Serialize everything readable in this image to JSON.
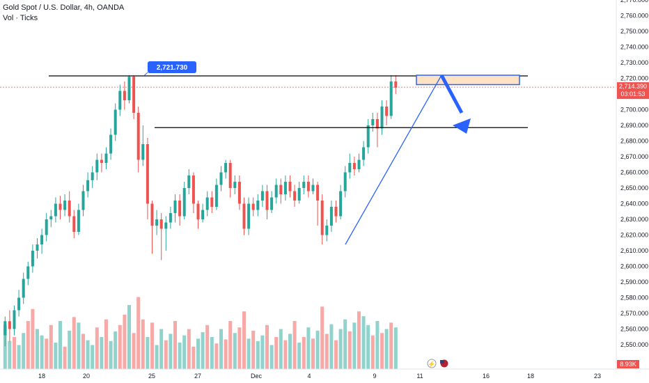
{
  "header": {
    "symbol_line": "Gold Spot / U.S. Dollar, 4h, OANDA",
    "volume_line": "Vol · Ticks"
  },
  "price_axis": {
    "ticks": [
      "2,770.000",
      "2,760.000",
      "2,750.000",
      "2,740.000",
      "2,730.000",
      "2,720.000",
      "2,700.000",
      "2,690.000",
      "2,680.000",
      "2,670.000",
      "2,660.000",
      "2,650.000",
      "2,640.000",
      "2,630.000",
      "2,620.000",
      "2,610.000",
      "2,600.000",
      "2,590.000",
      "2,580.000",
      "2,570.000",
      "2,560.000",
      "2,550.000"
    ],
    "last_price_label": "2,714.390",
    "countdown_label": "03:01:53",
    "volume_label": "8.93K"
  },
  "time_axis": {
    "ticks": [
      "18",
      "20",
      "25",
      "27",
      "Dec",
      "4",
      "9",
      "11",
      "16",
      "18",
      "23"
    ]
  },
  "annotations": {
    "high_label": "2,721.730"
  },
  "colors": {
    "up": "#26a69a",
    "down": "#ef5350",
    "vol_up": "#8fd3cc",
    "vol_down": "#f7a9a7",
    "arrow": "#2962ff",
    "box_fill": "#fde3c4",
    "price_tag": "#ef5350"
  },
  "chart_data": {
    "type": "candlestick",
    "y_axis_range": [
      2545,
      2775
    ],
    "resistance_levels": [
      2722,
      2689
    ],
    "zone": [
      2716,
      2722
    ],
    "trendline_start_price": 2614,
    "projected_target": 2690,
    "candles": [
      [
        2556,
        2565,
        2549,
        2568
      ],
      [
        2565,
        2560,
        2552,
        2572
      ],
      [
        2560,
        2572,
        2556,
        2575
      ],
      [
        2572,
        2580,
        2568,
        2585
      ],
      [
        2580,
        2592,
        2576,
        2596
      ],
      [
        2592,
        2600,
        2588,
        2603
      ],
      [
        2600,
        2610,
        2596,
        2614
      ],
      [
        2610,
        2614,
        2605,
        2618
      ],
      [
        2614,
        2620,
        2608,
        2624
      ],
      [
        2620,
        2630,
        2616,
        2634
      ],
      [
        2630,
        2632,
        2625,
        2636
      ],
      [
        2632,
        2640,
        2628,
        2644
      ],
      [
        2640,
        2636,
        2630,
        2645
      ],
      [
        2636,
        2642,
        2632,
        2646
      ],
      [
        2642,
        2632,
        2628,
        2648
      ],
      [
        2632,
        2622,
        2618,
        2636
      ],
      [
        2622,
        2636,
        2620,
        2640
      ],
      [
        2636,
        2648,
        2632,
        2652
      ],
      [
        2648,
        2655,
        2644,
        2660
      ],
      [
        2655,
        2660,
        2650,
        2664
      ],
      [
        2660,
        2668,
        2655,
        2672
      ],
      [
        2668,
        2666,
        2660,
        2672
      ],
      [
        2666,
        2672,
        2662,
        2676
      ],
      [
        2672,
        2684,
        2668,
        2688
      ],
      [
        2684,
        2700,
        2680,
        2704
      ],
      [
        2700,
        2712,
        2696,
        2716
      ],
      [
        2712,
        2706,
        2700,
        2718
      ],
      [
        2706,
        2721,
        2704,
        2722
      ],
      [
        2721,
        2698,
        2694,
        2722
      ],
      [
        2698,
        2668,
        2660,
        2702
      ],
      [
        2668,
        2678,
        2664,
        2690
      ],
      [
        2678,
        2640,
        2630,
        2682
      ],
      [
        2640,
        2626,
        2608,
        2642
      ],
      [
        2626,
        2630,
        2620,
        2636
      ],
      [
        2630,
        2624,
        2604,
        2634
      ],
      [
        2624,
        2628,
        2610,
        2632
      ],
      [
        2628,
        2634,
        2624,
        2638
      ],
      [
        2634,
        2642,
        2628,
        2646
      ],
      [
        2642,
        2632,
        2626,
        2646
      ],
      [
        2632,
        2650,
        2630,
        2654
      ],
      [
        2650,
        2658,
        2646,
        2662
      ],
      [
        2658,
        2640,
        2634,
        2660
      ],
      [
        2640,
        2630,
        2624,
        2642
      ],
      [
        2630,
        2636,
        2628,
        2640
      ],
      [
        2636,
        2644,
        2632,
        2648
      ],
      [
        2644,
        2638,
        2634,
        2648
      ],
      [
        2638,
        2652,
        2636,
        2656
      ],
      [
        2652,
        2660,
        2648,
        2664
      ],
      [
        2660,
        2666,
        2656,
        2668
      ],
      [
        2666,
        2650,
        2644,
        2668
      ],
      [
        2650,
        2654,
        2646,
        2658
      ],
      [
        2654,
        2640,
        2636,
        2658
      ],
      [
        2640,
        2624,
        2620,
        2644
      ],
      [
        2624,
        2640,
        2620,
        2644
      ],
      [
        2640,
        2636,
        2632,
        2644
      ],
      [
        2636,
        2642,
        2632,
        2646
      ],
      [
        2642,
        2648,
        2638,
        2652
      ],
      [
        2648,
        2636,
        2630,
        2652
      ],
      [
        2636,
        2644,
        2634,
        2648
      ],
      [
        2644,
        2652,
        2640,
        2656
      ],
      [
        2652,
        2646,
        2640,
        2656
      ],
      [
        2646,
        2654,
        2642,
        2658
      ],
      [
        2654,
        2648,
        2644,
        2658
      ],
      [
        2648,
        2642,
        2638,
        2652
      ],
      [
        2642,
        2650,
        2640,
        2654
      ],
      [
        2650,
        2654,
        2646,
        2658
      ],
      [
        2654,
        2648,
        2644,
        2658
      ],
      [
        2648,
        2652,
        2646,
        2656
      ],
      [
        2652,
        2642,
        2626,
        2654
      ],
      [
        2642,
        2620,
        2614,
        2646
      ],
      [
        2620,
        2626,
        2616,
        2630
      ],
      [
        2626,
        2638,
        2622,
        2642
      ],
      [
        2638,
        2632,
        2628,
        2642
      ],
      [
        2632,
        2648,
        2630,
        2652
      ],
      [
        2648,
        2660,
        2644,
        2664
      ],
      [
        2660,
        2666,
        2656,
        2672
      ],
      [
        2666,
        2662,
        2658,
        2670
      ],
      [
        2662,
        2668,
        2660,
        2672
      ],
      [
        2668,
        2676,
        2664,
        2680
      ],
      [
        2676,
        2690,
        2672,
        2694
      ],
      [
        2690,
        2694,
        2686,
        2698
      ],
      [
        2694,
        2688,
        2676,
        2698
      ],
      [
        2688,
        2702,
        2684,
        2706
      ],
      [
        2702,
        2696,
        2690,
        2706
      ],
      [
        2696,
        2718,
        2694,
        2722
      ],
      [
        2718,
        2714,
        2710,
        2722
      ]
    ],
    "volumes": [
      [
        0.55,
        1
      ],
      [
        0.35,
        1
      ],
      [
        0.4,
        0
      ],
      [
        0.3,
        1
      ],
      [
        0.45,
        1
      ],
      [
        0.6,
        0
      ],
      [
        0.75,
        0
      ],
      [
        0.5,
        1
      ],
      [
        0.42,
        1
      ],
      [
        0.38,
        0
      ],
      [
        0.55,
        0
      ],
      [
        0.33,
        1
      ],
      [
        0.6,
        1
      ],
      [
        0.28,
        0
      ],
      [
        0.48,
        1
      ],
      [
        0.65,
        0
      ],
      [
        0.58,
        1
      ],
      [
        0.44,
        0
      ],
      [
        0.36,
        1
      ],
      [
        0.3,
        1
      ],
      [
        0.52,
        0
      ],
      [
        0.4,
        1
      ],
      [
        0.62,
        0
      ],
      [
        0.35,
        1
      ],
      [
        0.47,
        1
      ],
      [
        0.55,
        0
      ],
      [
        0.68,
        0
      ],
      [
        0.8,
        1
      ],
      [
        0.45,
        0
      ],
      [
        0.9,
        0
      ],
      [
        0.62,
        0
      ],
      [
        0.4,
        1
      ],
      [
        0.58,
        0
      ],
      [
        0.3,
        1
      ],
      [
        0.5,
        1
      ],
      [
        0.36,
        0
      ],
      [
        0.44,
        1
      ],
      [
        0.6,
        0
      ],
      [
        0.33,
        1
      ],
      [
        0.42,
        1
      ],
      [
        0.5,
        0
      ],
      [
        0.28,
        0
      ],
      [
        0.38,
        1
      ],
      [
        0.46,
        1
      ],
      [
        0.55,
        0
      ],
      [
        0.4,
        1
      ],
      [
        0.32,
        0
      ],
      [
        0.5,
        1
      ],
      [
        0.37,
        0
      ],
      [
        0.6,
        0
      ],
      [
        0.45,
        1
      ],
      [
        0.52,
        0
      ],
      [
        0.72,
        0
      ],
      [
        0.38,
        1
      ],
      [
        0.48,
        0
      ],
      [
        0.35,
        1
      ],
      [
        0.42,
        1
      ],
      [
        0.55,
        0
      ],
      [
        0.3,
        1
      ],
      [
        0.4,
        0
      ],
      [
        0.5,
        1
      ],
      [
        0.36,
        0
      ],
      [
        0.44,
        1
      ],
      [
        0.6,
        0
      ],
      [
        0.33,
        1
      ],
      [
        0.4,
        0
      ],
      [
        0.52,
        1
      ],
      [
        0.38,
        0
      ],
      [
        0.48,
        1
      ],
      [
        0.78,
        0
      ],
      [
        0.44,
        0
      ],
      [
        0.56,
        1
      ],
      [
        0.36,
        0
      ],
      [
        0.5,
        1
      ],
      [
        0.62,
        1
      ],
      [
        0.47,
        0
      ],
      [
        0.58,
        1
      ],
      [
        0.72,
        0
      ],
      [
        0.66,
        1
      ],
      [
        0.55,
        1
      ],
      [
        0.42,
        0
      ],
      [
        0.6,
        1
      ],
      [
        0.45,
        0
      ],
      [
        0.5,
        1
      ],
      [
        0.58,
        0
      ],
      [
        0.52,
        1
      ]
    ]
  }
}
